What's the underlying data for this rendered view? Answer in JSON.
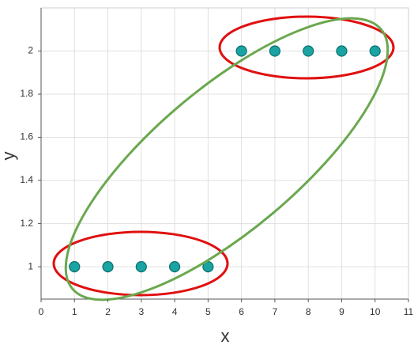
{
  "chart_data": {
    "type": "scatter",
    "x": [
      1,
      2,
      3,
      4,
      5,
      6,
      7,
      8,
      9,
      10
    ],
    "values": [
      1,
      1,
      1,
      1,
      1,
      2,
      2,
      2,
      2,
      2
    ],
    "color": "#1aa3a3",
    "xlabel": "x",
    "ylabel": "y",
    "xlim": [
      0,
      11
    ],
    "ylim": [
      0.85,
      2.2
    ],
    "xticks": [
      0,
      1,
      2,
      3,
      4,
      5,
      6,
      7,
      8,
      9,
      10,
      11
    ],
    "yticks": [
      1,
      1.2,
      1.4,
      1.6,
      1.8,
      2
    ],
    "grid": true
  }
}
